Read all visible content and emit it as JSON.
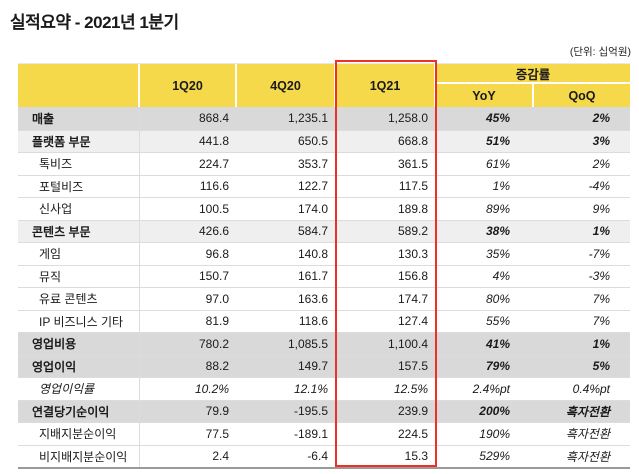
{
  "title": "실적요약 - 2021년 1분기",
  "unit_note": "(단위: 십억원)",
  "colors": {
    "header_yellow": "#F5D94B",
    "highlight_red": "#EE3124",
    "row_dark_gray": "#D9D9D9",
    "row_light_gray": "#EFEFEF"
  },
  "table": {
    "period_columns": [
      "1Q20",
      "4Q20",
      "1Q21"
    ],
    "highlighted_column": "1Q21",
    "change_group_label": "증감률",
    "change_columns": [
      "YoY",
      "QoQ"
    ],
    "rows": [
      {
        "label": "매출",
        "q1_20": "868.4",
        "q4_20": "1,235.1",
        "q1_21": "1,258.0",
        "yoy": "45%",
        "qoq": "2%"
      },
      {
        "label": "플랫폼 부문",
        "q1_20": "441.8",
        "q4_20": "650.5",
        "q1_21": "668.8",
        "yoy": "51%",
        "qoq": "3%"
      },
      {
        "label": "톡비즈",
        "q1_20": "224.7",
        "q4_20": "353.7",
        "q1_21": "361.5",
        "yoy": "61%",
        "qoq": "2%"
      },
      {
        "label": "포털비즈",
        "q1_20": "116.6",
        "q4_20": "122.7",
        "q1_21": "117.5",
        "yoy": "1%",
        "qoq": "-4%"
      },
      {
        "label": "신사업",
        "q1_20": "100.5",
        "q4_20": "174.0",
        "q1_21": "189.8",
        "yoy": "89%",
        "qoq": "9%"
      },
      {
        "label": "콘텐츠 부문",
        "q1_20": "426.6",
        "q4_20": "584.7",
        "q1_21": "589.2",
        "yoy": "38%",
        "qoq": "1%"
      },
      {
        "label": "게임",
        "q1_20": "96.8",
        "q4_20": "140.8",
        "q1_21": "130.3",
        "yoy": "35%",
        "qoq": "-7%"
      },
      {
        "label": "뮤직",
        "q1_20": "150.7",
        "q4_20": "161.7",
        "q1_21": "156.8",
        "yoy": "4%",
        "qoq": "-3%"
      },
      {
        "label": "유료 콘텐츠",
        "q1_20": "97.0",
        "q4_20": "163.6",
        "q1_21": "174.7",
        "yoy": "80%",
        "qoq": "7%"
      },
      {
        "label": "IP 비즈니스 기타",
        "q1_20": "81.9",
        "q4_20": "118.6",
        "q1_21": "127.4",
        "yoy": "55%",
        "qoq": "7%"
      },
      {
        "label": "영업비용",
        "q1_20": "780.2",
        "q4_20": "1,085.5",
        "q1_21": "1,100.4",
        "yoy": "41%",
        "qoq": "1%"
      },
      {
        "label": "영업이익",
        "q1_20": "88.2",
        "q4_20": "149.7",
        "q1_21": "157.5",
        "yoy": "79%",
        "qoq": "5%"
      },
      {
        "label": "영업이익률",
        "q1_20": "10.2%",
        "q4_20": "12.1%",
        "q1_21": "12.5%",
        "yoy": "2.4%pt",
        "qoq": "0.4%pt"
      },
      {
        "label": "연결당기순이익",
        "q1_20": "79.9",
        "q4_20": "-195.5",
        "q1_21": "239.9",
        "yoy": "200%",
        "qoq": "흑자전환"
      },
      {
        "label": "지배지분순이익",
        "q1_20": "77.5",
        "q4_20": "-189.1",
        "q1_21": "224.5",
        "yoy": "190%",
        "qoq": "흑자전환"
      },
      {
        "label": "비지배지분순이익",
        "q1_20": "2.4",
        "q4_20": "-6.4",
        "q1_21": "15.3",
        "yoy": "529%",
        "qoq": "흑자전환"
      }
    ]
  }
}
